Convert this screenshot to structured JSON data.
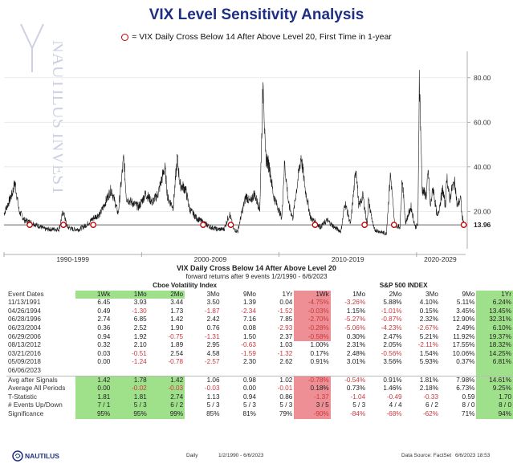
{
  "title": "VIX Level Sensitivity Analysis",
  "legend_text": "= VIX Daily Cross Below 14 After Above Level 20, First Time in 1-year",
  "watermark_text": "NAUTILUS INVESTMENT RESEARCH",
  "chart_data": {
    "type": "line",
    "title": "VIX Level Sensitivity Analysis",
    "ylim": [
      5,
      90
    ],
    "yticks": [
      "80.00",
      "60.00",
      "40.00",
      "20.00"
    ],
    "ytick_values": [
      80,
      60,
      40,
      20
    ],
    "reference_line": {
      "value": 13.96,
      "label": "13.96"
    },
    "period_labels": [
      "1990-1999",
      "2000-2009",
      "2010-2019",
      "2020-2029"
    ],
    "period_starts": [
      1990,
      2000,
      2010,
      2020
    ],
    "x_range": [
      1990.0,
      2023.45
    ],
    "series": [
      {
        "values": [
          [
            1990.0,
            19
          ],
          [
            1990.6,
            28
          ],
          [
            1990.8,
            33
          ],
          [
            1991.1,
            20
          ],
          [
            1991.5,
            16
          ],
          [
            1992.0,
            15
          ],
          [
            1993.0,
            12
          ],
          [
            1994.0,
            12
          ],
          [
            1994.3,
            20
          ],
          [
            1994.6,
            13
          ],
          [
            1995.0,
            12
          ],
          [
            1995.5,
            12
          ],
          [
            1996.0,
            14
          ],
          [
            1996.5,
            17
          ],
          [
            1997.0,
            19
          ],
          [
            1997.8,
            30
          ],
          [
            1998.3,
            19
          ],
          [
            1998.7,
            44
          ],
          [
            1998.9,
            26
          ],
          [
            1999.3,
            24
          ],
          [
            1999.8,
            22
          ],
          [
            2000.3,
            28
          ],
          [
            2000.8,
            24
          ],
          [
            2001.2,
            28
          ],
          [
            2001.7,
            40
          ],
          [
            2001.9,
            26
          ],
          [
            2002.3,
            22
          ],
          [
            2002.6,
            44
          ],
          [
            2002.8,
            32
          ],
          [
            2003.2,
            30
          ],
          [
            2003.5,
            21
          ],
          [
            2004.0,
            17
          ],
          [
            2004.5,
            15
          ],
          [
            2005.0,
            13
          ],
          [
            2005.5,
            12
          ],
          [
            2006.0,
            12
          ],
          [
            2006.4,
            19
          ],
          [
            2006.7,
            12
          ],
          [
            2007.0,
            11
          ],
          [
            2007.2,
            17
          ],
          [
            2007.6,
            27
          ],
          [
            2007.9,
            24
          ],
          [
            2008.2,
            28
          ],
          [
            2008.6,
            21
          ],
          [
            2008.85,
            81
          ],
          [
            2009.0,
            45
          ],
          [
            2009.3,
            40
          ],
          [
            2009.6,
            27
          ],
          [
            2009.9,
            22
          ],
          [
            2010.2,
            17
          ],
          [
            2010.4,
            42
          ],
          [
            2010.7,
            23
          ],
          [
            2011.0,
            17
          ],
          [
            2011.6,
            45
          ],
          [
            2011.9,
            30
          ],
          [
            2012.3,
            17
          ],
          [
            2012.7,
            15
          ],
          [
            2013.0,
            13
          ],
          [
            2013.5,
            16
          ],
          [
            2014.0,
            13
          ],
          [
            2014.5,
            11
          ],
          [
            2014.8,
            24
          ],
          [
            2015.2,
            14
          ],
          [
            2015.6,
            40
          ],
          [
            2015.8,
            22
          ],
          [
            2016.1,
            27
          ],
          [
            2016.4,
            14
          ],
          [
            2016.5,
            25
          ],
          [
            2016.9,
            12
          ],
          [
            2017.3,
            11
          ],
          [
            2017.8,
            10
          ],
          [
            2018.1,
            37
          ],
          [
            2018.4,
            14
          ],
          [
            2018.8,
            13
          ],
          [
            2018.95,
            35
          ],
          [
            2019.2,
            15
          ],
          [
            2019.6,
            22
          ],
          [
            2019.9,
            13
          ],
          [
            2020.1,
            14
          ],
          [
            2020.2,
            82
          ],
          [
            2020.4,
            30
          ],
          [
            2020.7,
            27
          ],
          [
            2020.85,
            38
          ],
          [
            2021.0,
            22
          ],
          [
            2021.2,
            31
          ],
          [
            2021.5,
            17
          ],
          [
            2021.9,
            30
          ],
          [
            2022.1,
            22
          ],
          [
            2022.2,
            36
          ],
          [
            2022.4,
            25
          ],
          [
            2022.6,
            31
          ],
          [
            2022.8,
            33
          ],
          [
            2022.95,
            22
          ],
          [
            2023.2,
            26
          ],
          [
            2023.3,
            18
          ],
          [
            2023.45,
            14
          ]
        ]
      }
    ],
    "events": [
      "1991-11-13",
      "1994-04-26",
      "1996-06-28",
      "2004-06-23",
      "2006-06-29",
      "2012-08-13",
      "2016-03-21",
      "2018-05-09",
      "2023-06-06"
    ],
    "event_x": [
      1991.87,
      1994.32,
      1996.49,
      2004.48,
      2006.49,
      2012.62,
      2016.22,
      2018.36,
      2023.43
    ]
  },
  "table": {
    "title": "VIX Daily Cross Below 14 After Above Level 20",
    "subtitle": "forward returns after 9 events 1/2/1990 - 6/6/2023",
    "group1": "Cboe Volatility Index",
    "group2": "S&P 500 INDEX",
    "label_header": "Event Dates",
    "columns": [
      "1Wk",
      "1Mo",
      "2Mo",
      "3Mo",
      "9Mo",
      "1Yr",
      "1Wk",
      "1Mo",
      "2Mo",
      "3Mo",
      "9Mo",
      "1Yr"
    ],
    "rows": [
      {
        "label": "11/13/1991",
        "values": [
          "6.45",
          "3.93",
          "3.44",
          "3.50",
          "1.39",
          "0.04",
          "-4.75%",
          "-3.26%",
          "5.88%",
          "4.10%",
          "5.11%",
          "6.24%"
        ]
      },
      {
        "label": "04/26/1994",
        "values": [
          "0.49",
          "-1.30",
          "1.73",
          "-1.87",
          "-2.34",
          "-1.52",
          "-0.03%",
          "1.15%",
          "-1.01%",
          "0.15%",
          "3.45%",
          "13.45%"
        ]
      },
      {
        "label": "06/28/1996",
        "values": [
          "2.74",
          "6.85",
          "1.42",
          "2.42",
          "7.16",
          "7.85",
          "-2.70%",
          "-5.27%",
          "-0.87%",
          "2.32%",
          "12.90%",
          "32.31%"
        ]
      },
      {
        "label": "06/23/2004",
        "values": [
          "0.36",
          "2.52",
          "1.90",
          "0.76",
          "0.08",
          "-2.93",
          "-0.28%",
          "-5.06%",
          "-4.23%",
          "-2.67%",
          "2.49%",
          "6.10%"
        ]
      },
      {
        "label": "06/29/2006",
        "values": [
          "0.94",
          "1.92",
          "-0.75",
          "-1.31",
          "1.50",
          "2.37",
          "-0.58%",
          "0.30%",
          "2.47%",
          "5.21%",
          "11.92%",
          "19.37%"
        ]
      },
      {
        "label": "08/13/2012",
        "values": [
          "0.32",
          "2.10",
          "1.89",
          "2.95",
          "-0.63",
          "1.03",
          "1.00%",
          "2.31%",
          "2.05%",
          "-2.11%",
          "17.55%",
          "18.32%"
        ]
      },
      {
        "label": "03/21/2016",
        "values": [
          "0.03",
          "-0.51",
          "2.54",
          "4.58",
          "-1.59",
          "-1.32",
          "0.17%",
          "2.48%",
          "-0.56%",
          "1.54%",
          "10.06%",
          "14.25%"
        ]
      },
      {
        "label": "05/09/2018",
        "values": [
          "0.00",
          "-1.24",
          "-0.78",
          "-2.57",
          "2.30",
          "2.62",
          "0.91%",
          "3.01%",
          "3.56%",
          "5.93%",
          "0.37%",
          "6.81%"
        ]
      },
      {
        "label": "06/06/2023",
        "values": [
          "",
          "",
          "",
          "",
          "",
          "",
          "",
          "",
          "",
          "",
          "",
          ""
        ]
      }
    ],
    "summary": [
      {
        "label": "Avg after Signals",
        "values": [
          "1.42",
          "1.78",
          "1.42",
          "1.06",
          "0.98",
          "1.02",
          "-0.78%",
          "-0.54%",
          "0.91%",
          "1.81%",
          "7.98%",
          "14.61%"
        ]
      },
      {
        "label": "Average All Periods",
        "values": [
          "0.00",
          "-0.02",
          "-0.03",
          "-0.03",
          "0.00",
          "-0.01",
          "0.18%",
          "0.73%",
          "1.46%",
          "2.18%",
          "6.73%",
          "9.25%"
        ]
      },
      {
        "label": "T-Statistic",
        "values": [
          "1.81",
          "1.81",
          "2.74",
          "1.13",
          "0.94",
          "0.86",
          "-1.37",
          "-1.04",
          "-0.49",
          "-0.33",
          "0.59",
          "1.70"
        ]
      },
      {
        "label": "# Events Up/Down",
        "values": [
          "7 / 1",
          "5 / 3",
          "6 / 2",
          "5 / 3",
          "5 / 3",
          "5 / 3",
          "3 / 5",
          "5 / 3",
          "4 / 4",
          "6 / 2",
          "8 / 0",
          "8 / 0"
        ]
      },
      {
        "label": "Significance",
        "values": [
          "95%",
          "95%",
          "99%",
          "85%",
          "81%",
          "79%",
          "-90%",
          "-84%",
          "-68%",
          "-62%",
          "71%",
          "94%"
        ]
      }
    ]
  },
  "footer": {
    "brand": "NAUTILUS",
    "frequency": "Daily",
    "range": "1/2/1990 - 6/6/2023",
    "source": "Data Source: FactSet",
    "timestamp": "6/6/2023 18:53"
  },
  "colors": {
    "title": "#1f2f82",
    "positive": "#9fe08a",
    "negative": "#ee8f95",
    "event_marker": "#c00000",
    "line": "#1a1a1a"
  }
}
